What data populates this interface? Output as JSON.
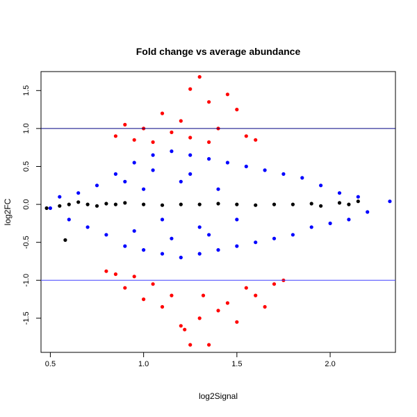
{
  "chart_data": {
    "type": "scatter",
    "title": "Fold change vs average abundance",
    "xlabel": "log2Signal",
    "ylabel": "log2FC",
    "xlim": [
      0.45,
      2.35
    ],
    "ylim": [
      -1.95,
      1.75
    ],
    "x_ticks": [
      "0.5",
      "1.0",
      "1.5",
      "2.0"
    ],
    "x_tick_values": [
      0.5,
      1.0,
      1.5,
      2.0
    ],
    "y_ticks": [
      "-1.5",
      "-1.0",
      "-0.5",
      "0.0",
      "0.5",
      "1.0",
      "1.5"
    ],
    "y_tick_values": [
      -1.5,
      -1.0,
      -0.5,
      0.0,
      0.5,
      1.0,
      1.5
    ],
    "grid": false,
    "reference_lines": [
      {
        "y": 1.0,
        "color": "#000080"
      },
      {
        "y": -1.0,
        "color": "#4040ff"
      }
    ],
    "series": [
      {
        "color": "#0000ff",
        "description_points": [
          [
            0.5,
            -0.05
          ],
          [
            0.55,
            0.1
          ],
          [
            0.6,
            -0.2
          ],
          [
            0.65,
            0.15
          ],
          [
            0.7,
            -0.3
          ],
          [
            0.75,
            0.25
          ],
          [
            0.8,
            -0.4
          ],
          [
            0.85,
            0.4
          ],
          [
            0.9,
            -0.55
          ],
          [
            0.95,
            0.55
          ],
          [
            1.0,
            -0.6
          ],
          [
            1.05,
            0.65
          ],
          [
            1.1,
            -0.65
          ],
          [
            1.15,
            0.7
          ],
          [
            1.2,
            -0.7
          ],
          [
            1.25,
            0.65
          ],
          [
            1.3,
            -0.65
          ],
          [
            1.35,
            0.6
          ],
          [
            1.4,
            -0.6
          ],
          [
            1.45,
            0.55
          ],
          [
            1.5,
            -0.55
          ],
          [
            1.55,
            0.5
          ],
          [
            1.6,
            -0.5
          ],
          [
            1.65,
            0.45
          ],
          [
            1.7,
            -0.45
          ],
          [
            1.75,
            0.4
          ],
          [
            1.8,
            -0.4
          ],
          [
            1.85,
            0.35
          ],
          [
            1.9,
            -0.3
          ],
          [
            1.95,
            0.25
          ],
          [
            2.0,
            -0.25
          ],
          [
            2.05,
            0.15
          ],
          [
            2.1,
            -0.2
          ],
          [
            2.15,
            0.1
          ],
          [
            2.2,
            -0.1
          ],
          [
            2.32,
            0.04
          ],
          [
            1.0,
            0.2
          ],
          [
            1.1,
            -0.2
          ],
          [
            1.2,
            0.3
          ],
          [
            1.3,
            -0.3
          ],
          [
            1.4,
            0.2
          ],
          [
            1.5,
            -0.2
          ],
          [
            0.9,
            0.3
          ],
          [
            0.95,
            -0.35
          ],
          [
            1.05,
            0.45
          ],
          [
            1.15,
            -0.45
          ],
          [
            1.25,
            0.4
          ],
          [
            1.35,
            -0.4
          ]
        ]
      },
      {
        "color": "#ff0000",
        "description_points": [
          [
            0.85,
            0.9
          ],
          [
            0.9,
            1.05
          ],
          [
            0.95,
            0.85
          ],
          [
            1.0,
            1.0
          ],
          [
            1.05,
            0.82
          ],
          [
            1.1,
            1.2
          ],
          [
            1.15,
            0.95
          ],
          [
            1.2,
            1.1
          ],
          [
            1.25,
            0.88
          ],
          [
            1.3,
            1.68
          ],
          [
            1.35,
            1.35
          ],
          [
            1.4,
            1.0
          ],
          [
            1.45,
            1.45
          ],
          [
            1.5,
            1.25
          ],
          [
            1.55,
            0.9
          ],
          [
            1.6,
            0.85
          ],
          [
            1.25,
            1.52
          ],
          [
            1.35,
            0.82
          ],
          [
            0.85,
            -0.92
          ],
          [
            0.9,
            -1.1
          ],
          [
            0.95,
            -0.95
          ],
          [
            1.0,
            -1.25
          ],
          [
            1.05,
            -1.05
          ],
          [
            1.1,
            -1.35
          ],
          [
            1.15,
            -1.2
          ],
          [
            1.2,
            -1.6
          ],
          [
            1.25,
            -1.85
          ],
          [
            1.3,
            -1.5
          ],
          [
            1.35,
            -1.85
          ],
          [
            1.4,
            -1.4
          ],
          [
            1.45,
            -1.3
          ],
          [
            1.5,
            -1.55
          ],
          [
            1.55,
            -1.1
          ],
          [
            1.6,
            -1.2
          ],
          [
            1.65,
            -1.35
          ],
          [
            1.7,
            -1.05
          ],
          [
            1.75,
            -1.0
          ],
          [
            1.22,
            -1.65
          ],
          [
            1.32,
            -1.2
          ],
          [
            0.8,
            -0.88
          ]
        ]
      },
      {
        "color": "#000000",
        "description_points": [
          [
            0.48,
            -0.05
          ],
          [
            0.55,
            -0.02
          ],
          [
            0.6,
            0.0
          ],
          [
            0.65,
            0.03
          ],
          [
            0.7,
            0.0
          ],
          [
            0.75,
            -0.02
          ],
          [
            0.8,
            0.01
          ],
          [
            0.85,
            0.0
          ],
          [
            0.9,
            0.02
          ],
          [
            1.0,
            0.0
          ],
          [
            1.1,
            -0.01
          ],
          [
            1.2,
            0.0
          ],
          [
            1.3,
            0.0
          ],
          [
            1.4,
            0.01
          ],
          [
            1.5,
            0.0
          ],
          [
            1.6,
            -0.01
          ],
          [
            1.7,
            0.0
          ],
          [
            1.8,
            0.0
          ],
          [
            1.9,
            0.01
          ],
          [
            1.95,
            -0.02
          ],
          [
            2.05,
            0.02
          ],
          [
            2.1,
            0.0
          ],
          [
            2.15,
            0.04
          ],
          [
            0.58,
            -0.47
          ]
        ]
      }
    ]
  }
}
